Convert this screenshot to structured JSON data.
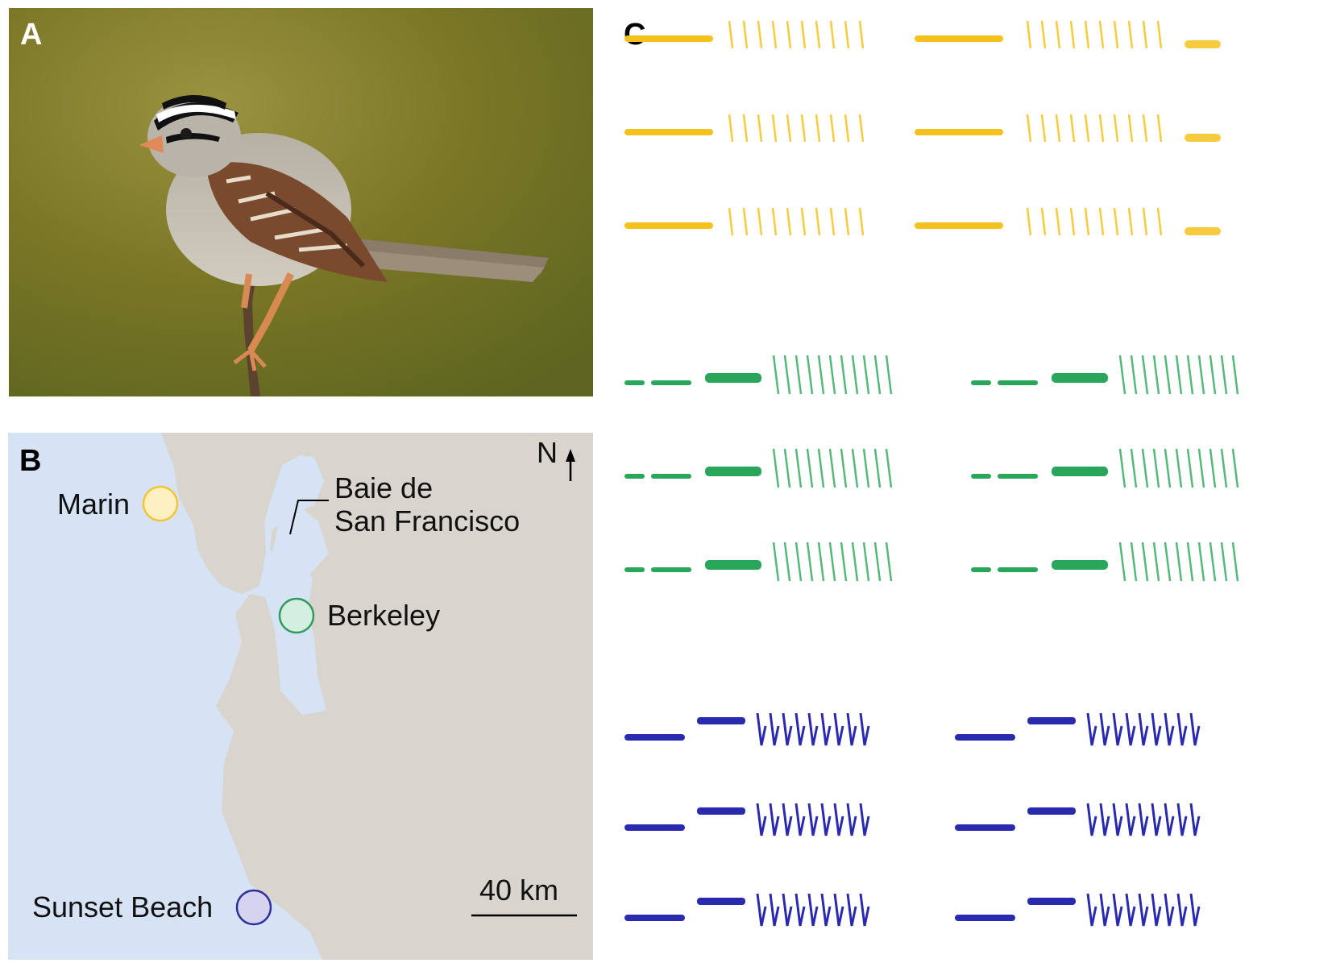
{
  "panels": {
    "a": {
      "letter": "A"
    },
    "b": {
      "letter": "B"
    },
    "c": {
      "letter": "C"
    }
  },
  "map": {
    "north_label": "N",
    "bay_label_line1": "Baie de",
    "bay_label_line2": "San Francisco",
    "scale_label": "40 km",
    "sites": [
      {
        "name": "Marin",
        "fill": "#fdf1c3",
        "stroke": "#f3c530"
      },
      {
        "name": "Berkeley",
        "fill": "#d3efdf",
        "stroke": "#2e9b5c"
      },
      {
        "name": "Sunset Beach",
        "fill": "#d5d3f0",
        "stroke": "#2f2f9a"
      }
    ],
    "colors": {
      "water": "#d6e3f5",
      "land": "#d9d4ce"
    }
  },
  "photo": {
    "colors": {
      "bg_dark": "#6d6c22",
      "bg_light": "#8c8a3a",
      "bird_brown": "#7a4a2e",
      "bird_grey": "#bdb6ac"
    }
  },
  "spectrograms": {
    "groups": [
      {
        "site": "Marin",
        "color": "#f4c21b"
      },
      {
        "site": "Berkeley",
        "color": "#2aa65a"
      },
      {
        "site": "Sunset Beach",
        "color": "#2a2ab0"
      }
    ]
  }
}
